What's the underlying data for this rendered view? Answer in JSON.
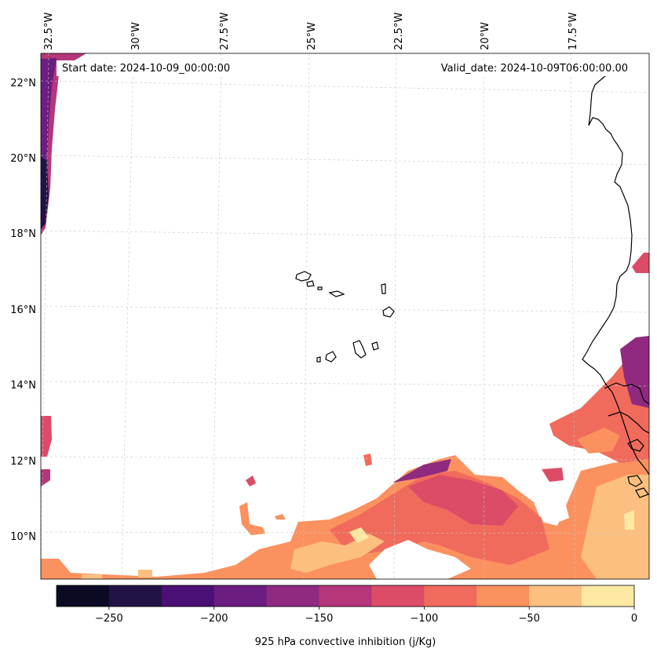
{
  "map": {
    "start_date_label": "Start date: 2024-10-09_00:00:00",
    "valid_date_label": "Valid_date: 2024-10-09T06:00:00.00",
    "lon_labels": [
      "32.5°W",
      "30°W",
      "27.5°W",
      "25°W",
      "22.5°W",
      "20°W",
      "17.5°W"
    ],
    "lat_labels": [
      "22°N",
      "20°N",
      "18°N",
      "16°N",
      "14°N",
      "12°N",
      "10°N"
    ],
    "extent": {
      "lon_min": -32.6,
      "lon_max": -15.5,
      "lat_min": 8.9,
      "lat_max": 22.8
    },
    "gridlines": true
  },
  "colorbar": {
    "label": "925 hPa convective inhibition (j/Kg)",
    "tick_labels": [
      "−250",
      "−200",
      "−150",
      "−100",
      "−50",
      "0"
    ],
    "levels": [
      -275,
      -250,
      -225,
      -200,
      -175,
      -150,
      -125,
      -100,
      -75,
      -50,
      -25,
      0
    ],
    "colors": [
      "#0b0a24",
      "#221347",
      "#4a1075",
      "#6c1d80",
      "#8f2a80",
      "#b5367b",
      "#dc4c67",
      "#f06b5c",
      "#fb915f",
      "#fdbf80",
      "#fee9a3"
    ]
  }
}
